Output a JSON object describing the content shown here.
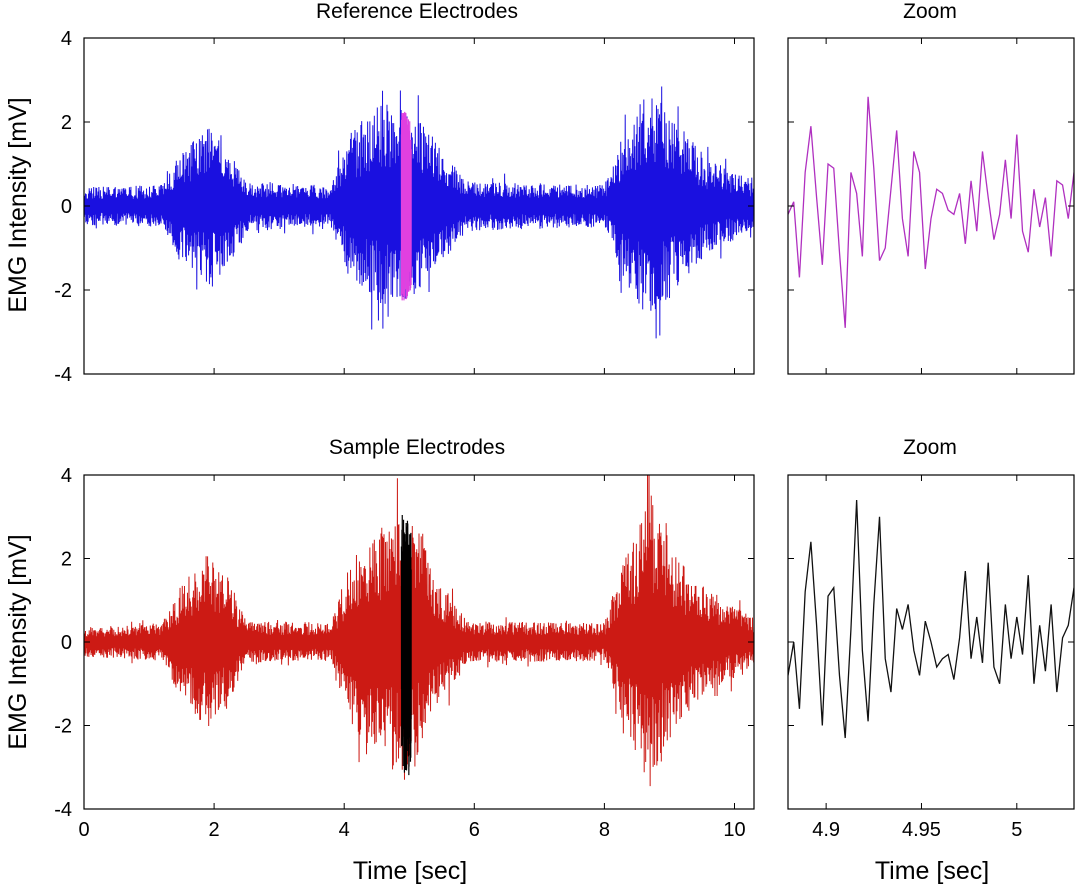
{
  "chart_data": [
    {
      "type": "line",
      "title": "Reference Electrodes",
      "xlabel": "",
      "ylabel": "EMG Intensity [mV]",
      "xlim": [
        0,
        10.3
      ],
      "ylim": [
        -4,
        4
      ],
      "yticks": [
        4,
        2,
        0,
        -2,
        -4
      ],
      "xticks": [
        0,
        2,
        4,
        6,
        8,
        10
      ],
      "show_x_ticklabels": false,
      "series": [
        {
          "color": "#1a10e0",
          "envelope": [
            {
              "t": 0.0,
              "amp": 0.45
            },
            {
              "t": 1.2,
              "amp": 0.5
            },
            {
              "t": 1.5,
              "amp": 1.3
            },
            {
              "t": 1.9,
              "amp": 1.9
            },
            {
              "t": 2.2,
              "amp": 1.5
            },
            {
              "t": 2.5,
              "amp": 0.6
            },
            {
              "t": 3.8,
              "amp": 0.5
            },
            {
              "t": 4.1,
              "amp": 1.8
            },
            {
              "t": 4.7,
              "amp": 2.6
            },
            {
              "t": 5.0,
              "amp": 2.3
            },
            {
              "t": 5.4,
              "amp": 1.6
            },
            {
              "t": 5.9,
              "amp": 0.6
            },
            {
              "t": 8.0,
              "amp": 0.5
            },
            {
              "t": 8.3,
              "amp": 1.8
            },
            {
              "t": 8.7,
              "amp": 2.8
            },
            {
              "t": 9.1,
              "amp": 2.0
            },
            {
              "t": 9.6,
              "amp": 1.1
            },
            {
              "t": 10.3,
              "amp": 0.6
            }
          ]
        }
      ],
      "highlight": {
        "x_start": 4.88,
        "x_end": 5.03,
        "color": "#e040e0"
      }
    },
    {
      "type": "line",
      "title": "Zoom",
      "xlim": [
        4.88,
        5.03
      ],
      "ylim": [
        -4,
        4
      ],
      "show_x_ticklabels": false,
      "show_y_ticklabels": false,
      "series": [
        {
          "color": "#b030c0",
          "x": [
            4.88,
            4.883,
            4.886,
            4.889,
            4.892,
            4.895,
            4.898,
            4.901,
            4.904,
            4.907,
            4.91,
            4.913,
            4.916,
            4.919,
            4.922,
            4.925,
            4.928,
            4.931,
            4.934,
            4.937,
            4.94,
            4.943,
            4.946,
            4.949,
            4.952,
            4.955,
            4.958,
            4.961,
            4.964,
            4.967,
            4.97,
            4.973,
            4.976,
            4.979,
            4.982,
            4.985,
            4.988,
            4.991,
            4.994,
            4.997,
            5.0,
            5.003,
            5.006,
            5.009,
            5.012,
            5.015,
            5.018,
            5.021,
            5.024,
            5.027,
            5.03
          ],
          "y": [
            -0.2,
            0.1,
            -1.7,
            0.8,
            1.9,
            0.2,
            -1.4,
            1.0,
            0.9,
            -1.1,
            -2.9,
            0.8,
            0.3,
            -1.2,
            2.6,
            0.9,
            -1.3,
            -1.0,
            0.4,
            1.8,
            -0.3,
            -1.2,
            1.3,
            0.8,
            -1.5,
            -0.3,
            0.4,
            0.3,
            -0.1,
            -0.2,
            0.3,
            -0.9,
            0.6,
            -0.6,
            1.3,
            0.2,
            -0.8,
            -0.2,
            1.1,
            -0.3,
            1.7,
            -0.6,
            -1.1,
            0.4,
            -0.5,
            0.2,
            -1.2,
            0.6,
            0.5,
            -0.3,
            0.8
          ]
        }
      ]
    },
    {
      "type": "line",
      "title": "Sample Electrodes",
      "xlabel": "Time [sec]",
      "ylabel": "EMG Intensity [mV]",
      "xlim": [
        0,
        10.3
      ],
      "ylim": [
        -4,
        4
      ],
      "yticks": [
        4,
        2,
        0,
        -2,
        -4
      ],
      "xticks": [
        0,
        2,
        4,
        6,
        8,
        10
      ],
      "series": [
        {
          "color": "#cc1a14",
          "envelope": [
            {
              "t": 0.0,
              "amp": 0.35
            },
            {
              "t": 1.2,
              "amp": 0.45
            },
            {
              "t": 1.5,
              "amp": 1.4
            },
            {
              "t": 1.9,
              "amp": 2.1
            },
            {
              "t": 2.2,
              "amp": 1.6
            },
            {
              "t": 2.5,
              "amp": 0.5
            },
            {
              "t": 3.8,
              "amp": 0.45
            },
            {
              "t": 4.1,
              "amp": 2.0
            },
            {
              "t": 4.7,
              "amp": 3.0
            },
            {
              "t": 5.0,
              "amp": 3.4
            },
            {
              "t": 5.4,
              "amp": 1.6
            },
            {
              "t": 5.9,
              "amp": 0.5
            },
            {
              "t": 8.0,
              "amp": 0.45
            },
            {
              "t": 8.3,
              "amp": 2.0
            },
            {
              "t": 8.7,
              "amp": 3.5
            },
            {
              "t": 9.1,
              "amp": 2.1
            },
            {
              "t": 9.6,
              "amp": 1.2
            },
            {
              "t": 10.3,
              "amp": 0.6
            }
          ]
        }
      ],
      "highlight": {
        "x_start": 4.88,
        "x_end": 5.03,
        "color": "#000000"
      }
    },
    {
      "type": "line",
      "title": "Zoom",
      "xlabel": "Time [sec]",
      "xlim": [
        4.88,
        5.03
      ],
      "ylim": [
        -4,
        4
      ],
      "xticks": [
        4.9,
        4.95,
        5
      ],
      "show_y_ticklabels": false,
      "series": [
        {
          "color": "#111111",
          "x": [
            4.88,
            4.883,
            4.886,
            4.889,
            4.892,
            4.895,
            4.898,
            4.901,
            4.904,
            4.907,
            4.91,
            4.913,
            4.916,
            4.919,
            4.922,
            4.925,
            4.928,
            4.931,
            4.934,
            4.937,
            4.94,
            4.943,
            4.946,
            4.949,
            4.952,
            4.955,
            4.958,
            4.961,
            4.964,
            4.967,
            4.97,
            4.973,
            4.976,
            4.979,
            4.982,
            4.985,
            4.988,
            4.991,
            4.994,
            4.997,
            5.0,
            5.003,
            5.006,
            5.009,
            5.012,
            5.015,
            5.018,
            5.021,
            5.024,
            5.027,
            5.03
          ],
          "y": [
            -0.8,
            0.0,
            -1.6,
            1.2,
            2.4,
            0.4,
            -2.0,
            1.1,
            1.3,
            -0.8,
            -2.3,
            0.3,
            3.4,
            -0.2,
            -1.9,
            0.9,
            3.0,
            -0.4,
            -1.2,
            0.8,
            0.3,
            0.9,
            -0.2,
            -0.8,
            0.5,
            0.0,
            -0.6,
            -0.4,
            -0.3,
            -0.9,
            0.1,
            1.7,
            -0.4,
            0.6,
            -0.5,
            1.9,
            -0.6,
            -1.0,
            0.9,
            -0.4,
            0.6,
            -0.3,
            1.6,
            -1.0,
            0.4,
            -0.7,
            0.9,
            -1.2,
            0.1,
            0.4,
            1.3
          ]
        }
      ]
    }
  ],
  "labels": {
    "panel1_title": "Reference Electrodes",
    "panel2_title": "Zoom",
    "panel3_title": "Sample Electrodes",
    "panel4_title": "Zoom",
    "ylabel_top": "EMG Intensity [mV]",
    "ylabel_bottom": "EMG Intensity [mV]",
    "xlabel_left": "Time [sec]",
    "xlabel_right": "Time [sec]"
  }
}
